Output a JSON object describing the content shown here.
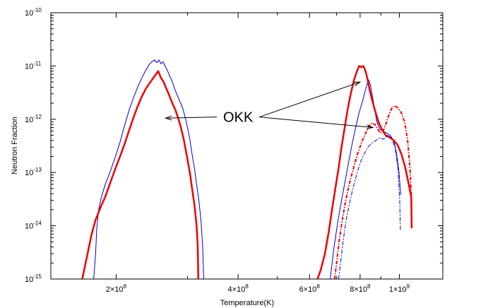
{
  "chart_data": {
    "type": "line",
    "xlabel": "Temperature(K)",
    "ylabel": "Neutron Fraction",
    "xscale": "log",
    "yscale": "log",
    "xlim": [
      138000000,
      1280000000
    ],
    "ylim": [
      1e-15,
      1e-10
    ],
    "grid": false,
    "x_ticks": [
      {
        "value": 200000000,
        "mantissa": "2×10",
        "exp": "8"
      },
      {
        "value": 400000000,
        "mantissa": "4×10",
        "exp": "8"
      },
      {
        "value": 600000000,
        "mantissa": "6×10",
        "exp": "8"
      },
      {
        "value": 800000000,
        "mantissa": "8×10",
        "exp": "8"
      },
      {
        "value": 1000000000,
        "mantissa": "1×10",
        "exp": "9"
      }
    ],
    "y_ticks": [
      {
        "value": 1e-15,
        "mantissa": "10",
        "exp": "-15"
      },
      {
        "value": 1e-14,
        "mantissa": "10",
        "exp": "-14"
      },
      {
        "value": 1e-13,
        "mantissa": "10",
        "exp": "-13"
      },
      {
        "value": 1e-12,
        "mantissa": "10",
        "exp": "-12"
      },
      {
        "value": 1e-11,
        "mantissa": "10",
        "exp": "-11"
      },
      {
        "value": 1e-10,
        "mantissa": "10",
        "exp": "-10"
      }
    ],
    "annotation": {
      "text": "OKK",
      "text_x": 400000000,
      "text_y": 1.1e-12,
      "arrows_to": [
        {
          "x": 265000000,
          "y": 1.05e-12
        },
        {
          "x": 800000000,
          "y": 5e-12
        },
        {
          "x": 860000000,
          "y": 7e-13
        }
      ]
    },
    "series": [
      {
        "color": "#0000cc",
        "width": 1,
        "dash": "",
        "points": [
          [
            176000000,
            1e-15
          ],
          [
            178000000,
            3e-15
          ],
          [
            179000000,
            8e-15
          ],
          [
            181000000,
            2e-14
          ],
          [
            184000000,
            3.5e-14
          ],
          [
            188000000,
            6e-14
          ],
          [
            192000000,
            9e-14
          ],
          [
            196000000,
            1.4e-13
          ],
          [
            200000000,
            2.2e-13
          ],
          [
            204000000,
            3.5e-13
          ],
          [
            208000000,
            6e-13
          ],
          [
            212000000,
            1e-12
          ],
          [
            216000000,
            1.6e-12
          ],
          [
            221000000,
            2.6e-12
          ],
          [
            226000000,
            4e-12
          ],
          [
            231000000,
            5.8e-12
          ],
          [
            236000000,
            8e-12
          ],
          [
            241000000,
            1.05e-11
          ],
          [
            245000000,
            1.2e-11
          ],
          [
            249000000,
            1.3e-11
          ],
          [
            252000000,
            1.15e-11
          ],
          [
            255000000,
            1.3e-11
          ],
          [
            258000000,
            1.1e-11
          ],
          [
            261000000,
            1.2e-11
          ],
          [
            265000000,
            9.5e-12
          ],
          [
            268000000,
            8e-12
          ],
          [
            271000000,
            6.5e-12
          ],
          [
            274000000,
            5.5e-12
          ],
          [
            278000000,
            4e-12
          ],
          [
            282000000,
            3e-12
          ],
          [
            287000000,
            2.2e-12
          ],
          [
            292000000,
            1.6e-12
          ],
          [
            296000000,
            1.1e-12
          ],
          [
            300000000,
            7e-13
          ],
          [
            304000000,
            4.2e-13
          ],
          [
            308000000,
            2.2e-13
          ],
          [
            312000000,
            1.2e-13
          ],
          [
            316000000,
            6e-14
          ],
          [
            320000000,
            3e-14
          ],
          [
            324000000,
            1.2e-14
          ],
          [
            327000000,
            4e-15
          ],
          [
            329000000,
            1e-15
          ]
        ]
      },
      {
        "color": "#ee0000",
        "width": 2.5,
        "dash": "",
        "points": [
          [
            165000000,
            1e-15
          ],
          [
            170000000,
            3e-15
          ],
          [
            174000000,
            7e-15
          ],
          [
            178000000,
            1.3e-14
          ],
          [
            183000000,
            2.2e-14
          ],
          [
            188000000,
            3.5e-14
          ],
          [
            192000000,
            5.5e-14
          ],
          [
            196000000,
            8.5e-14
          ],
          [
            200000000,
            1.3e-13
          ],
          [
            205000000,
            2.1e-13
          ],
          [
            210000000,
            3.5e-13
          ],
          [
            215000000,
            6e-13
          ],
          [
            220000000,
            1e-12
          ],
          [
            225000000,
            1.6e-12
          ],
          [
            231000000,
            2.6e-12
          ],
          [
            237000000,
            3.8e-12
          ],
          [
            243000000,
            5e-12
          ],
          [
            249000000,
            6.5e-12
          ],
          [
            254000000,
            8e-12
          ],
          [
            258000000,
            6e-12
          ],
          [
            262000000,
            5e-12
          ],
          [
            265000000,
            4e-12
          ],
          [
            268000000,
            3.3e-12
          ],
          [
            272000000,
            2.5e-12
          ],
          [
            276000000,
            1.9e-12
          ],
          [
            280000000,
            1.5e-12
          ],
          [
            284000000,
            1.1e-12
          ],
          [
            289000000,
            7e-13
          ],
          [
            294000000,
            4e-13
          ],
          [
            299000000,
            2e-13
          ],
          [
            304000000,
            1e-13
          ],
          [
            308000000,
            5e-14
          ],
          [
            312000000,
            2.5e-14
          ],
          [
            316000000,
            1e-14
          ],
          [
            318000000,
            4e-15
          ],
          [
            319000000,
            1e-15
          ]
        ]
      },
      {
        "color": "#0000cc",
        "width": 1,
        "dash": "",
        "points": [
          [
            675000000,
            1e-15
          ],
          [
            690000000,
            4e-15
          ],
          [
            705000000,
            1.2e-14
          ],
          [
            720000000,
            3e-14
          ],
          [
            735000000,
            7e-14
          ],
          [
            750000000,
            1.6e-13
          ],
          [
            765000000,
            3.5e-13
          ],
          [
            780000000,
            7e-13
          ],
          [
            795000000,
            1.3e-12
          ],
          [
            810000000,
            2.1e-12
          ],
          [
            822000000,
            3.2e-12
          ],
          [
            832000000,
            4.5e-12
          ],
          [
            840000000,
            5.5e-12
          ],
          [
            848000000,
            4.5e-12
          ],
          [
            856000000,
            3e-12
          ],
          [
            864000000,
            2e-12
          ],
          [
            872000000,
            1.3e-12
          ],
          [
            880000000,
            9e-13
          ],
          [
            895000000,
            6.5e-13
          ],
          [
            910000000,
            6e-13
          ],
          [
            930000000,
            5.5e-13
          ],
          [
            950000000,
            5e-13
          ],
          [
            970000000,
            3.8e-13
          ],
          [
            985000000,
            2.2e-13
          ],
          [
            998000000,
            1e-13
          ],
          [
            1005000000,
            5e-14
          ],
          [
            1008000000,
            3.8e-14
          ]
        ]
      },
      {
        "color": "#ee0000",
        "width": 2.5,
        "dash": "",
        "points": [
          [
            628000000,
            1e-15
          ],
          [
            640000000,
            1.5e-15
          ],
          [
            655000000,
            3e-15
          ],
          [
            670000000,
            8e-15
          ],
          [
            682000000,
            2e-14
          ],
          [
            695000000,
            5e-14
          ],
          [
            708000000,
            1.2e-13
          ],
          [
            720000000,
            3e-13
          ],
          [
            733000000,
            7e-13
          ],
          [
            746000000,
            1.6e-12
          ],
          [
            760000000,
            3.2e-12
          ],
          [
            773000000,
            5.5e-12
          ],
          [
            786000000,
            8e-12
          ],
          [
            796000000,
            1e-11
          ],
          [
            806000000,
            9.5e-12
          ],
          [
            815000000,
            1e-11
          ],
          [
            825000000,
            8e-12
          ],
          [
            835000000,
            5.5e-12
          ],
          [
            845000000,
            3.5e-12
          ],
          [
            858000000,
            2.2e-12
          ],
          [
            872000000,
            1.4e-12
          ],
          [
            888000000,
            9e-13
          ],
          [
            905000000,
            6.5e-13
          ],
          [
            925000000,
            5e-13
          ],
          [
            948000000,
            4.5e-13
          ],
          [
            970000000,
            4e-13
          ],
          [
            992000000,
            3.2e-13
          ],
          [
            1012000000,
            2.2e-13
          ],
          [
            1035000000,
            1.2e-13
          ],
          [
            1055000000,
            6e-14
          ],
          [
            1070000000,
            3.5e-14
          ],
          [
            1073000000,
            9e-15
          ]
        ]
      },
      {
        "color": "#0000cc",
        "width": 1,
        "dash": "6,2,2,2",
        "points": [
          [
            708000000,
            1e-15
          ],
          [
            716000000,
            2e-15
          ],
          [
            726000000,
            5e-15
          ],
          [
            738000000,
            1.2e-14
          ],
          [
            752000000,
            2.5e-14
          ],
          [
            768000000,
            5e-14
          ],
          [
            784000000,
            9e-14
          ],
          [
            800000000,
            1.5e-13
          ],
          [
            818000000,
            2.2e-13
          ],
          [
            836000000,
            3e-13
          ],
          [
            856000000,
            3.6e-13
          ],
          [
            875000000,
            4e-13
          ],
          [
            895000000,
            4.5e-13
          ],
          [
            915000000,
            4.2e-13
          ],
          [
            935000000,
            5e-13
          ],
          [
            955000000,
            4.5e-13
          ],
          [
            975000000,
            3e-13
          ],
          [
            992000000,
            1.2e-13
          ],
          [
            1002000000,
            3e-14
          ],
          [
            1006000000,
            8e-15
          ]
        ]
      },
      {
        "color": "#ee0000",
        "width": 2,
        "dash": "5,2,1.5,2",
        "points": [
          [
            692000000,
            1e-15
          ],
          [
            700000000,
            2e-15
          ],
          [
            710000000,
            5e-15
          ],
          [
            722000000,
            1.2e-14
          ],
          [
            736000000,
            2.8e-14
          ],
          [
            752000000,
            6e-14
          ],
          [
            770000000,
            1.2e-13
          ],
          [
            788000000,
            2.2e-13
          ],
          [
            808000000,
            3.8e-13
          ],
          [
            826000000,
            5.5e-13
          ],
          [
            842000000,
            7.5e-13
          ],
          [
            856000000,
            8.5e-13
          ],
          [
            870000000,
            8e-13
          ],
          [
            884000000,
            6.5e-13
          ],
          [
            898000000,
            5.5e-13
          ],
          [
            912000000,
            6e-13
          ],
          [
            926000000,
            8e-13
          ],
          [
            942000000,
            1.2e-12
          ],
          [
            958000000,
            1.6e-12
          ],
          [
            976000000,
            1.8e-12
          ],
          [
            994000000,
            1.6e-12
          ],
          [
            1012000000,
            1.3e-12
          ],
          [
            1030000000,
            9e-13
          ],
          [
            1048000000,
            4e-13
          ],
          [
            1062000000,
            1.2e-13
          ],
          [
            1070000000,
            4e-14
          ],
          [
            1073000000,
            2e-14
          ]
        ]
      }
    ]
  }
}
